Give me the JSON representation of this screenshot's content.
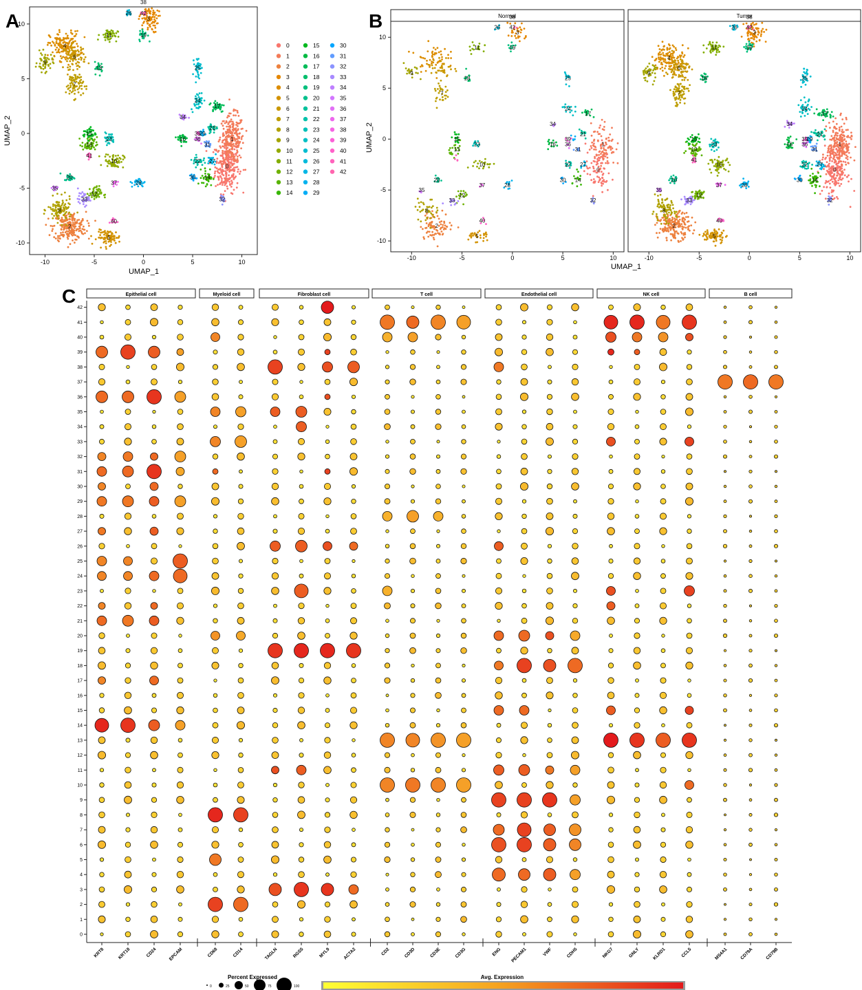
{
  "panel_letters": {
    "a": "A",
    "b": "B",
    "c": "C"
  },
  "panel_a": {
    "xlabel": "UMAP_1",
    "ylabel": "UMAP_2",
    "xticks": [
      -10,
      -5,
      0,
      5,
      10
    ],
    "yticks": [
      -10,
      -5,
      0,
      5,
      10
    ],
    "xlim": [
      -11.5,
      11.5
    ],
    "ylim": [
      -11,
      11.5
    ]
  },
  "panel_b": {
    "xlabel": "UMAP_1",
    "ylabel": "UMAP_2",
    "facets": [
      "Normal",
      "Tumor"
    ],
    "xticks": [
      -10,
      -5,
      0,
      5,
      10
    ],
    "yticks": [
      -10,
      -5,
      0,
      5,
      10
    ],
    "xlim": [
      -12,
      11
    ],
    "ylim": [
      -11,
      11.5
    ]
  },
  "legend_clusters": [
    "0",
    "1",
    "2",
    "3",
    "4",
    "5",
    "6",
    "7",
    "8",
    "9",
    "10",
    "11",
    "12",
    "13",
    "14",
    "15",
    "16",
    "17",
    "18",
    "19",
    "20",
    "21",
    "22",
    "23",
    "24",
    "25",
    "26",
    "27",
    "28",
    "29",
    "30",
    "31",
    "32",
    "33",
    "34",
    "35",
    "36",
    "37",
    "38",
    "39",
    "40",
    "41",
    "42"
  ],
  "cluster_colors": [
    "#F8766D",
    "#F37B59",
    "#ED813E",
    "#E58700",
    "#DC8D00",
    "#D39200",
    "#C99800",
    "#BD9D00",
    "#B0A100",
    "#A3A500",
    "#93AA00",
    "#82AD00",
    "#6FB100",
    "#59B300",
    "#39B600",
    "#00B81F",
    "#00BA42",
    "#00BC59",
    "#00BE6C",
    "#00BF7D",
    "#00C08D",
    "#00C19C",
    "#00C1AA",
    "#00C0B8",
    "#00BFC4",
    "#00BDD0",
    "#00BADB",
    "#00B6E5",
    "#00B2EE",
    "#00ADF6",
    "#00A6FF",
    "#619CFF",
    "#8B93FF",
    "#A88AFF",
    "#BF80FF",
    "#D277FF",
    "#E170F5",
    "#ED68ED",
    "#F565E3",
    "#FB61D7",
    "#FF61C9",
    "#FF62BC",
    "#FF65AE"
  ],
  "chart_data": [
    {
      "type": "scatter",
      "name": "A",
      "xlabel": "UMAP_1",
      "ylabel": "UMAP_2",
      "cluster_centroids": {
        "0": [
          8.5,
          -3
        ],
        "1": [
          9,
          -0.5
        ],
        "2": [
          -7.5,
          -8.5
        ],
        "3": [
          0.5,
          10.5
        ],
        "4": [
          -8,
          8
        ],
        "5": [
          -3.5,
          -9.5
        ],
        "6": [
          -7,
          7
        ],
        "7": [
          -7,
          4.5
        ],
        "8": [
          -8.5,
          -7
        ],
        "9": [
          -10,
          6.5
        ],
        "10": [
          -3,
          -2.5
        ],
        "11": [
          -3.5,
          9
        ],
        "12": [
          -5,
          -5.5
        ],
        "13": [
          -5.5,
          -1
        ],
        "14": [
          6.5,
          -4
        ],
        "15": [
          -5.5,
          0
        ],
        "16": [
          4,
          -0.5
        ],
        "17": [
          7.5,
          2.5
        ],
        "18": [
          -4.5,
          6
        ],
        "19": [
          0,
          9
        ],
        "20": [
          -7.5,
          -4
        ],
        "21": [
          7,
          0.5
        ],
        "22": [
          5.5,
          -2.5
        ],
        "23": [
          -3.5,
          -0.5
        ],
        "24": [
          5.5,
          3
        ],
        "25": [
          5.5,
          6
        ],
        "26": [
          -1.5,
          11
        ],
        "27": [
          7,
          -2.5
        ],
        "28": [
          -0.5,
          -4.5
        ],
        "29": [
          6,
          0
        ],
        "30": [
          5,
          -4
        ],
        "31": [
          6.5,
          -1
        ],
        "32": [
          8,
          -6
        ],
        "33": [
          -6,
          -6
        ],
        "34": [
          4,
          1.5
        ],
        "35": [
          -9,
          -5
        ],
        "36": [
          5.5,
          -0.5
        ],
        "37": [
          -3,
          -4.5
        ],
        "38": [
          0,
          12
        ],
        "39": [
          5.5,
          0
        ],
        "40": [
          -3,
          -8
        ],
        "41": [
          -5.5,
          -2
        ],
        "42": [
          0,
          11
        ]
      }
    },
    {
      "type": "scatter",
      "name": "B",
      "facets": [
        "Normal",
        "Tumor"
      ],
      "xlabel": "UMAP_1",
      "ylabel": "UMAP_2"
    },
    {
      "type": "dotplot",
      "name": "C",
      "groups": [
        {
          "name": "Epithelial cell",
          "genes": [
            "KRT8",
            "KRT18",
            "CD24",
            "EPCAM"
          ]
        },
        {
          "name": "Myeloid cell",
          "genes": [
            "CD68",
            "CD14"
          ]
        },
        {
          "name": "Fibroblast cell",
          "genes": [
            "TAGLN",
            "RGS5",
            "MYL9",
            "ACTA2"
          ]
        },
        {
          "name": "T cell",
          "genes": [
            "CD2",
            "CD3D",
            "CD3E",
            "CD3G"
          ]
        },
        {
          "name": "Endothelial cell",
          "genes": [
            "ENG",
            "PECAM1",
            "VWF",
            "CDH5"
          ]
        },
        {
          "name": "NK cell",
          "genes": [
            "NKG7",
            "GNLY",
            "KLRD1",
            "CCL5"
          ]
        },
        {
          "name": "B cell",
          "genes": [
            "MS4A1",
            "CD79A",
            "CD79B"
          ]
        }
      ],
      "clusters": [
        "0",
        "1",
        "2",
        "3",
        "4",
        "5",
        "6",
        "7",
        "8",
        "9",
        "10",
        "11",
        "12",
        "13",
        "14",
        "15",
        "16",
        "17",
        "18",
        "19",
        "20",
        "21",
        "22",
        "23",
        "24",
        "25",
        "26",
        "27",
        "28",
        "29",
        "30",
        "31",
        "32",
        "33",
        "34",
        "35",
        "36",
        "37",
        "38",
        "39",
        "40",
        "41",
        "42"
      ],
      "size_legend_title": "Percent Expressed",
      "size_legend_labels": [
        "0",
        "25",
        "50",
        "75",
        "100"
      ],
      "color_legend_title": "Avg. Expression",
      "color_low": "#FFFF33",
      "color_high": "#E31A1C",
      "highlights": [
        {
          "gene": "KRT8",
          "clusters": {
            "14": [
              0.9,
              0.95
            ],
            "36": [
              0.75,
              0.7
            ],
            "39": [
              0.75,
              0.7
            ],
            "21": [
              0.6,
              0.7
            ],
            "25": [
              0.6,
              0.6
            ],
            "24": [
              0.55,
              0.6
            ],
            "29": [
              0.6,
              0.65
            ],
            "31": [
              0.6,
              0.7
            ],
            "32": [
              0.5,
              0.6
            ],
            "30": [
              0.45,
              0.6
            ],
            "27": [
              0.45,
              0.65
            ],
            "17": [
              0.45,
              0.6
            ],
            "22": [
              0.4,
              0.6
            ]
          }
        },
        {
          "gene": "KRT18",
          "clusters": {
            "14": [
              0.95,
              0.9
            ],
            "39": [
              0.95,
              0.85
            ],
            "36": [
              0.75,
              0.7
            ],
            "21": [
              0.7,
              0.65
            ],
            "31": [
              0.7,
              0.7
            ],
            "29": [
              0.7,
              0.65
            ],
            "32": [
              0.6,
              0.65
            ],
            "25": [
              0.55,
              0.6
            ],
            "24": [
              0.55,
              0.6
            ]
          }
        },
        {
          "gene": "CD24",
          "clusters": {
            "31": [
              0.95,
              0.9
            ],
            "36": [
              0.95,
              0.9
            ],
            "14": [
              0.7,
              0.75
            ],
            "39": [
              0.75,
              0.75
            ],
            "29": [
              0.6,
              0.75
            ],
            "30": [
              0.5,
              0.7
            ],
            "21": [
              0.6,
              0.75
            ],
            "27": [
              0.5,
              0.75
            ],
            "24": [
              0.6,
              0.7
            ],
            "17": [
              0.55,
              0.7
            ],
            "32": [
              0.45,
              0.7
            ],
            "22": [
              0.4,
              0.7
            ]
          }
        },
        {
          "gene": "EPCAM",
          "clusters": {
            "25": [
              0.95,
              0.75
            ],
            "24": [
              0.9,
              0.7
            ],
            "29": [
              0.7,
              0.5
            ],
            "32": [
              0.7,
              0.5
            ],
            "36": [
              0.7,
              0.5
            ],
            "14": [
              0.6,
              0.5
            ],
            "31": [
              0.5,
              0.45
            ],
            "39": [
              0.4,
              0.5
            ]
          }
        },
        {
          "gene": "CD68",
          "clusters": {
            "8": [
              0.95,
              0.95
            ],
            "2": [
              0.95,
              0.85
            ],
            "5": [
              0.75,
              0.65
            ],
            "33": [
              0.65,
              0.6
            ],
            "35": [
              0.6,
              0.6
            ],
            "40": [
              0.55,
              0.6
            ],
            "20": [
              0.55,
              0.55
            ],
            "31": [
              0.3,
              0.7
            ]
          }
        },
        {
          "gene": "CD14",
          "clusters": {
            "8": [
              0.95,
              0.85
            ],
            "2": [
              0.95,
              0.7
            ],
            "33": [
              0.75,
              0.5
            ],
            "35": [
              0.65,
              0.5
            ],
            "20": [
              0.55,
              0.45
            ]
          }
        },
        {
          "gene": "TAGLN",
          "clusters": {
            "19": [
              0.95,
              0.9
            ],
            "38": [
              0.95,
              0.85
            ],
            "3": [
              0.8,
              0.8
            ],
            "26": [
              0.65,
              0.75
            ],
            "35": [
              0.6,
              0.75
            ],
            "11": [
              0.45,
              0.8
            ]
          }
        },
        {
          "gene": "RGS5",
          "clusters": {
            "19": [
              0.95,
              0.95
            ],
            "3": [
              0.95,
              0.9
            ],
            "23": [
              0.9,
              0.75
            ],
            "26": [
              0.75,
              0.75
            ],
            "35": [
              0.7,
              0.75
            ],
            "34": [
              0.65,
              0.75
            ],
            "11": [
              0.6,
              0.75
            ]
          }
        },
        {
          "gene": "MYL9",
          "clusters": {
            "42": [
              0.8,
              1
            ],
            "19": [
              0.95,
              0.95
            ],
            "3": [
              0.8,
              0.9
            ],
            "38": [
              0.65,
              0.8
            ],
            "39": [
              0.3,
              0.85
            ],
            "36": [
              0.3,
              0.8
            ],
            "31": [
              0.3,
              0.85
            ],
            "26": [
              0.55,
              0.8
            ]
          }
        },
        {
          "gene": "ACTA2",
          "clusters": {
            "19": [
              0.95,
              0.9
            ],
            "38": [
              0.75,
              0.75
            ],
            "3": [
              0.6,
              0.7
            ],
            "26": [
              0.5,
              0.7
            ]
          }
        },
        {
          "gene": "CD2",
          "clusters": {
            "41": [
              0.95,
              0.65
            ],
            "13": [
              0.95,
              0.6
            ],
            "10": [
              0.95,
              0.6
            ],
            "40": [
              0.6,
              0.4
            ],
            "28": [
              0.6,
              0.4
            ],
            "23": [
              0.6,
              0.4
            ]
          }
        },
        {
          "gene": "CD3D",
          "clusters": {
            "41": [
              0.8,
              0.7
            ],
            "13": [
              0.9,
              0.6
            ],
            "10": [
              0.95,
              0.65
            ],
            "40": [
              0.6,
              0.5
            ],
            "28": [
              0.75,
              0.5
            ]
          }
        },
        {
          "gene": "CD3E",
          "clusters": {
            "41": [
              0.95,
              0.6
            ],
            "13": [
              0.95,
              0.55
            ],
            "10": [
              0.95,
              0.6
            ],
            "28": [
              0.6,
              0.4
            ]
          }
        },
        {
          "gene": "CD3G",
          "clusters": {
            "41": [
              0.9,
              0.5
            ],
            "13": [
              0.95,
              0.5
            ],
            "10": [
              0.95,
              0.5
            ]
          }
        },
        {
          "gene": "ENG",
          "clusters": {
            "9": [
              0.95,
              0.85
            ],
            "6": [
              0.95,
              0.8
            ],
            "4": [
              0.85,
              0.7
            ],
            "7": [
              0.7,
              0.7
            ],
            "18": [
              0.55,
              0.65
            ],
            "20": [
              0.6,
              0.7
            ],
            "11": [
              0.65,
              0.75
            ],
            "15": [
              0.6,
              0.7
            ],
            "38": [
              0.6,
              0.65
            ],
            "26": [
              0.55,
              0.75
            ]
          }
        },
        {
          "gene": "PECAM1",
          "clusters": {
            "18": [
              0.95,
              0.85
            ],
            "9": [
              0.95,
              0.85
            ],
            "6": [
              0.95,
              0.85
            ],
            "7": [
              0.9,
              0.85
            ],
            "4": [
              0.75,
              0.7
            ],
            "20": [
              0.7,
              0.7
            ],
            "11": [
              0.7,
              0.75
            ],
            "15": [
              0.6,
              0.7
            ]
          }
        },
        {
          "gene": "VWF",
          "clusters": {
            "9": [
              0.95,
              0.9
            ],
            "6": [
              0.8,
              0.75
            ],
            "4": [
              0.8,
              0.75
            ],
            "7": [
              0.75,
              0.75
            ],
            "18": [
              0.8,
              0.8
            ],
            "20": [
              0.5,
              0.8
            ],
            "11": [
              0.5,
              0.65
            ]
          }
        },
        {
          "gene": "CDH5",
          "clusters": {
            "18": [
              0.95,
              0.7
            ],
            "6": [
              0.75,
              0.6
            ],
            "7": [
              0.75,
              0.55
            ],
            "4": [
              0.65,
              0.5
            ],
            "9": [
              0.65,
              0.5
            ],
            "11": [
              0.6,
              0.5
            ],
            "20": [
              0.6,
              0.45
            ]
          }
        },
        {
          "gene": "NKG7",
          "clusters": {
            "13": [
              0.95,
              1
            ],
            "41": [
              0.9,
              0.95
            ],
            "40": [
              0.65,
              0.8
            ],
            "33": [
              0.55,
              0.8
            ],
            "39": [
              0.35,
              0.95
            ],
            "23": [
              0.55,
              0.8
            ],
            "22": [
              0.5,
              0.75
            ],
            "15": [
              0.55,
              0.75
            ]
          }
        },
        {
          "gene": "GNLY",
          "clusters": {
            "13": [
              0.95,
              0.9
            ],
            "41": [
              0.95,
              0.95
            ],
            "40": [
              0.6,
              0.65
            ],
            "39": [
              0.3,
              0.75
            ]
          }
        },
        {
          "gene": "KLRD1",
          "clusters": {
            "13": [
              0.95,
              0.75
            ],
            "41": [
              0.9,
              0.65
            ],
            "40": [
              0.6,
              0.55
            ]
          }
        },
        {
          "gene": "CCL5",
          "clusters": {
            "13": [
              0.95,
              0.9
            ],
            "41": [
              0.95,
              0.9
            ],
            "40": [
              0.45,
              0.8
            ],
            "23": [
              0.65,
              0.85
            ],
            "33": [
              0.55,
              0.85
            ],
            "15": [
              0.5,
              0.85
            ],
            "10": [
              0.55,
              0.7
            ]
          }
        },
        {
          "gene": "MS4A1",
          "clusters": {
            "37": [
              0.95,
              0.65
            ]
          }
        },
        {
          "gene": "CD79A",
          "clusters": {
            "37": [
              0.95,
              0.7
            ]
          }
        },
        {
          "gene": "CD79B",
          "clusters": {
            "37": [
              0.95,
              0.65
            ]
          }
        }
      ]
    }
  ]
}
